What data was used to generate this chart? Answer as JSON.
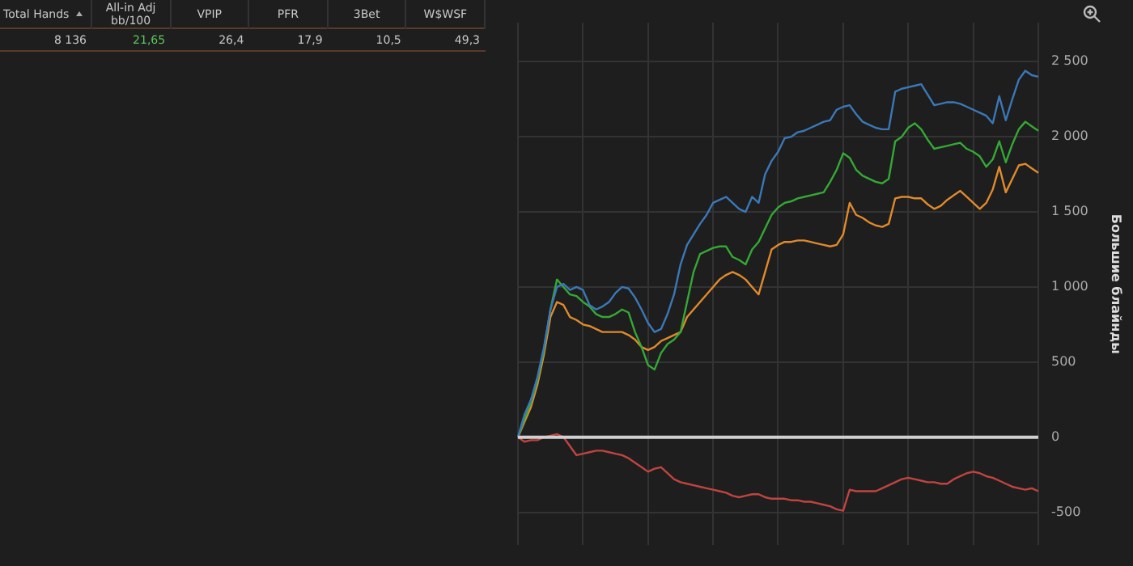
{
  "chart_data": [
    {
      "type": "other",
      "categories": [
        "Total Hands",
        "All-in Adj bb/100",
        "VPIP",
        "PFR",
        "3Bet",
        "W$WSF"
      ],
      "value_labels": [
        "8 136",
        "21,65",
        "26,4",
        "17,9",
        "10,5",
        "49,3"
      ],
      "colors": [
        "#c8c8c8",
        "#5cc85c",
        "#c8c8c8",
        "#c8c8c8",
        "#c8c8c8",
        "#c8c8c8"
      ]
    },
    {
      "type": "line",
      "ylabel": "Большие блайнды",
      "categories": [
        null,
        null,
        null,
        null,
        null,
        null,
        null,
        null,
        null,
        null,
        null,
        null,
        null,
        null,
        null,
        null,
        null,
        null,
        null,
        null,
        null,
        null,
        null,
        null,
        null,
        null,
        null,
        null,
        null,
        null,
        null,
        null,
        null,
        null,
        null,
        null,
        null,
        null,
        null,
        null,
        null,
        null,
        null,
        null,
        null,
        null,
        null,
        null,
        null,
        null,
        null,
        null,
        null,
        null,
        null,
        null,
        null,
        null,
        null,
        null,
        null,
        null,
        null,
        null,
        null,
        null,
        null,
        null,
        null,
        null,
        null,
        null,
        null,
        null,
        null,
        null,
        null,
        null,
        null,
        null,
        null
      ],
      "series": [
        {
          "color": "#3b78b8",
          "values": [
            0,
            150,
            250,
            400,
            600,
            850,
            1000,
            1020,
            980,
            1000,
            980,
            880,
            850,
            870,
            900,
            960,
            1000,
            990,
            930,
            850,
            760,
            700,
            720,
            820,
            950,
            1150,
            1280,
            1350,
            1420,
            1480,
            1560,
            1580,
            1600,
            1560,
            1520,
            1500,
            1600,
            1560,
            1750,
            1840,
            1900,
            1990,
            2000,
            2030,
            2040,
            2060,
            2080,
            2100,
            2110,
            2180,
            2200,
            2210,
            2150,
            2100,
            2080,
            2060,
            2050,
            2050,
            2300,
            2320,
            2330,
            2340,
            2350,
            2280,
            2210,
            2220,
            2230,
            2230,
            2220,
            2200,
            2180,
            2160,
            2140,
            2090,
            2270,
            2110,
            2250,
            2380,
            2440,
            2410,
            2400
          ]
        },
        {
          "color": "#35a835",
          "values": [
            0,
            120,
            230,
            380,
            580,
            850,
            1050,
            1000,
            950,
            940,
            900,
            870,
            820,
            800,
            800,
            820,
            850,
            830,
            700,
            600,
            480,
            450,
            560,
            620,
            650,
            700,
            900,
            1100,
            1220,
            1240,
            1260,
            1270,
            1270,
            1200,
            1180,
            1150,
            1250,
            1300,
            1390,
            1480,
            1530,
            1560,
            1570,
            1590,
            1600,
            1610,
            1620,
            1630,
            1700,
            1780,
            1890,
            1860,
            1780,
            1740,
            1720,
            1700,
            1690,
            1720,
            1970,
            2000,
            2060,
            2090,
            2050,
            1980,
            1920,
            1930,
            1940,
            1950,
            1960,
            1920,
            1900,
            1870,
            1800,
            1850,
            1970,
            1830,
            1950,
            2050,
            2100,
            2070,
            2040
          ]
        },
        {
          "color": "#e08a2c",
          "values": [
            0,
            100,
            200,
            350,
            550,
            800,
            900,
            880,
            800,
            780,
            750,
            740,
            720,
            700,
            700,
            700,
            700,
            680,
            650,
            600,
            580,
            600,
            640,
            660,
            680,
            700,
            800,
            850,
            900,
            950,
            1000,
            1050,
            1080,
            1100,
            1080,
            1050,
            1000,
            950,
            1100,
            1250,
            1280,
            1300,
            1300,
            1310,
            1310,
            1300,
            1290,
            1280,
            1270,
            1280,
            1350,
            1560,
            1480,
            1460,
            1430,
            1410,
            1400,
            1420,
            1590,
            1600,
            1600,
            1590,
            1590,
            1550,
            1520,
            1540,
            1580,
            1610,
            1640,
            1600,
            1560,
            1520,
            1560,
            1650,
            1800,
            1630,
            1720,
            1810,
            1820,
            1790,
            1760
          ]
        },
        {
          "color": "#c04440",
          "values": [
            0,
            -30,
            -20,
            -20,
            0,
            10,
            20,
            0,
            -60,
            -120,
            -110,
            -100,
            -90,
            -90,
            -100,
            -110,
            -120,
            -140,
            -170,
            -200,
            -230,
            -210,
            -200,
            -240,
            -280,
            -300,
            -310,
            -320,
            -330,
            -340,
            -350,
            -360,
            -370,
            -390,
            -400,
            -390,
            -380,
            -380,
            -400,
            -410,
            -410,
            -410,
            -420,
            -420,
            -430,
            -430,
            -440,
            -450,
            -460,
            -480,
            -490,
            -350,
            -360,
            -360,
            -360,
            -360,
            -340,
            -320,
            -300,
            -280,
            -270,
            -280,
            -290,
            -300,
            -300,
            -310,
            -310,
            -280,
            -260,
            -240,
            -230,
            -240,
            -260,
            -270,
            -290,
            -310,
            -330,
            -340,
            -350,
            -340,
            -360
          ]
        }
      ],
      "ylim": [
        -720,
        2760
      ],
      "yticks": [
        {
          "value": -500,
          "label": "-500"
        },
        {
          "value": 0,
          "label": "0"
        },
        {
          "value": 500,
          "label": "500"
        },
        {
          "value": 1000,
          "label": "1 000"
        },
        {
          "value": 1500,
          "label": "1 500"
        },
        {
          "value": 2000,
          "label": "2 000"
        },
        {
          "value": 2500,
          "label": "2 500"
        }
      ],
      "grid": true,
      "marker": "none",
      "tick_labels": "y",
      "ref_lines": [
        {
          "axis": "y",
          "value": 0,
          "color": "#d0d0d0"
        }
      ]
    }
  ]
}
